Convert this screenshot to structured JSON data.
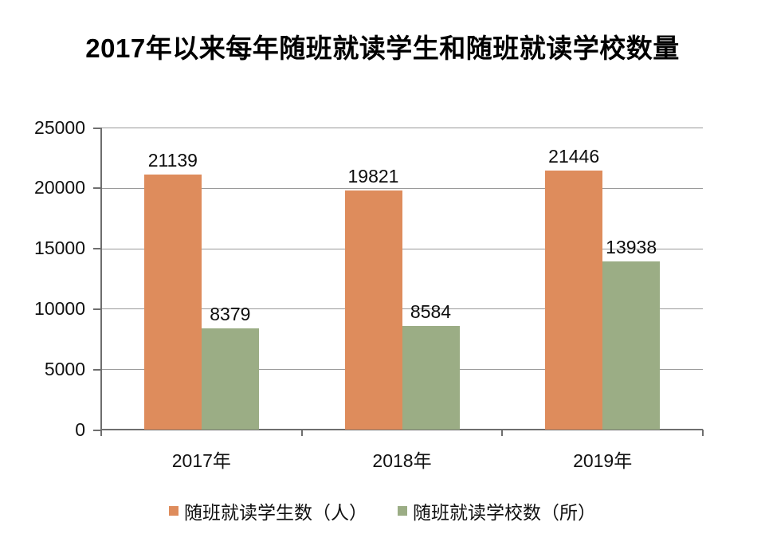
{
  "title": "2017年以来每年随班就读学生和随班就读学校数量",
  "chart_data": {
    "type": "bar",
    "title": "2017年以来每年随班就读学生和随班就读学校数量",
    "categories": [
      "2017年",
      "2018年",
      "2019年"
    ],
    "series": [
      {
        "name": "随班就读学生数（人）",
        "color": "#DE8C5C",
        "values": [
          21139,
          19821,
          21446
        ]
      },
      {
        "name": "随班就读学校数（所）",
        "color": "#9BAD85",
        "values": [
          8379,
          8584,
          13938
        ]
      }
    ],
    "ylim": [
      0,
      25000
    ],
    "yticks": [
      0,
      5000,
      10000,
      15000,
      20000,
      25000
    ],
    "grid": true,
    "data_labels": true,
    "legend_position": "bottom",
    "xlabel": "",
    "ylabel": ""
  },
  "colors": {
    "bar_students": "#DE8C5C",
    "bar_schools": "#9BAD85",
    "gridline": "#9a9a9a",
    "axis": "#6e6e6e",
    "background": "#ffffff"
  }
}
